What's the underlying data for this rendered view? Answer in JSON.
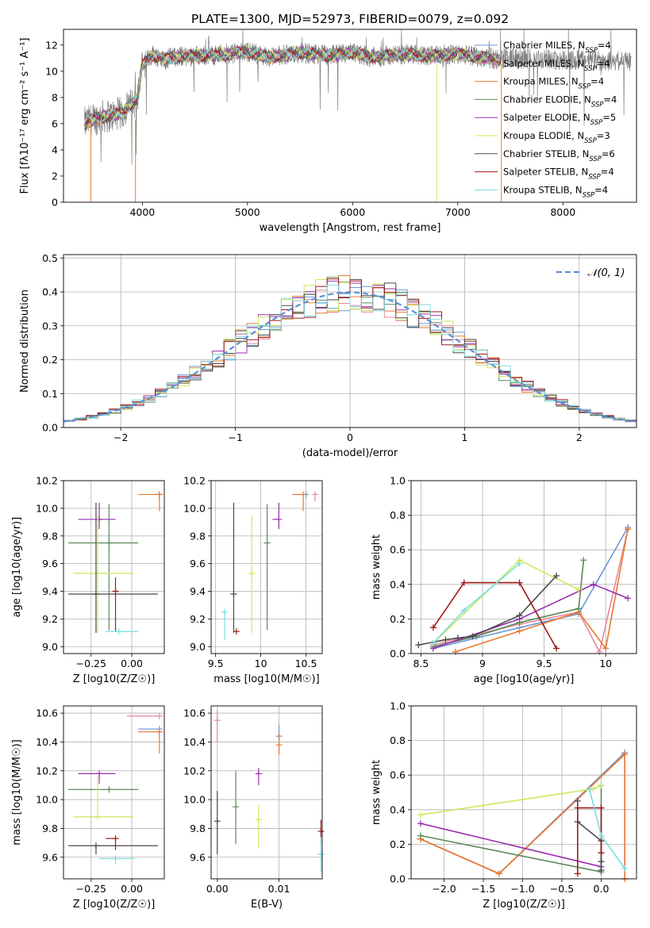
{
  "chart_data": [
    {
      "id": "spectrum",
      "type": "line",
      "title": "PLATE=1300, MJD=52973, FIBERID=0079, z=0.092",
      "xlabel": "wavelength [Angstrom, rest frame]",
      "ylabel": "Flux [fλ10⁻¹⁷ erg cm⁻² s⁻¹ A⁻¹]",
      "xlim": [
        3250,
        8700
      ],
      "ylim": [
        0,
        13.2
      ],
      "xticks": [
        4000,
        5000,
        6000,
        7000,
        8000
      ],
      "yticks": [
        0,
        2,
        4,
        6,
        8,
        10,
        12
      ],
      "grid": false,
      "legend_position": "right",
      "continuum": {
        "x": [
          3450,
          3500,
          3600,
          3700,
          3800,
          3900,
          3950,
          4000,
          4100,
          4200,
          4300,
          4500,
          4800,
          5000,
          5200,
          5500,
          5800,
          6000,
          6200,
          6500,
          6800,
          7000,
          7200,
          7400
        ],
        "y": [
          6.0,
          6.2,
          6.5,
          6.6,
          6.8,
          7.5,
          7.8,
          10.5,
          11.3,
          10.9,
          11.1,
          11.2,
          11.3,
          11.5,
          11.1,
          11.4,
          11.2,
          11.4,
          11.1,
          11.3,
          11.2,
          11.3,
          11.1,
          10.9
        ]
      },
      "series": [
        {
          "name": "Chabrier MILES, N_SSP=4",
          "color": "#6c96d6"
        },
        {
          "name": "Salpeter MILES, N_SSP=4",
          "color": "#e8889c"
        },
        {
          "name": "Kroupa MILES, N_SSP=4",
          "color": "#e67a30"
        },
        {
          "name": "Chabrier ELODIE, N_SSP=4",
          "color": "#5a8a5a"
        },
        {
          "name": "Salpeter ELODIE, N_SSP=5",
          "color": "#9c30b0"
        },
        {
          "name": "Kroupa ELODIE, N_SSP=3",
          "color": "#cde95c"
        },
        {
          "name": "Chabrier STELIB, N_SSP=6",
          "color": "#4a4a4a"
        },
        {
          "name": "Salpeter STELIB, N_SSP=4",
          "color": "#a01818"
        },
        {
          "name": "Kroupa STELIB, N_SSP=4",
          "color": "#7adce0"
        }
      ]
    },
    {
      "id": "residuals",
      "type": "histogram",
      "xlabel": "(data-model)/error",
      "ylabel": "Normed distribution",
      "xlim": [
        -2.5,
        2.5
      ],
      "ylim": [
        0,
        0.51
      ],
      "xticks": [
        -2,
        -1,
        0,
        1,
        2
      ],
      "yticks": [
        0.0,
        0.1,
        0.2,
        0.3,
        0.4,
        0.5
      ],
      "grid": true,
      "legend_position": "upper right",
      "gaussian_label": "𝒩(0, 1)",
      "gaussian_color": "#5a90d6"
    },
    {
      "id": "age_vs_Z",
      "type": "scatter",
      "xlabel": "Z [log10(Z/Z☉)]",
      "ylabel": "age  [log10(age/yr)]",
      "xlim": [
        -0.42,
        0.2
      ],
      "ylim": [
        8.95,
        10.2
      ],
      "xticks": [
        -0.25,
        0.0
      ],
      "xtick_labels": [
        "−0.25",
        "0.00"
      ],
      "yticks": [
        9.0,
        9.2,
        9.4,
        9.6,
        9.8,
        10.0,
        10.2
      ],
      "grid": true,
      "points": [
        {
          "series": "Chabrier MILES",
          "x": 0.17,
          "y": 10.1,
          "xerr": [
            0.0,
            0.0
          ],
          "yerr": [
            0.0,
            0.0
          ]
        },
        {
          "series": "Salpeter MILES",
          "x": 0.17,
          "y": 10.1,
          "xerr": [
            0.05,
            0.0
          ],
          "yerr": [
            0.05,
            0.0
          ]
        },
        {
          "series": "Kroupa MILES",
          "x": 0.17,
          "y": 10.1,
          "xerr": [
            0.13,
            0.0
          ],
          "yerr": [
            0.12,
            0.0
          ]
        },
        {
          "series": "Chabrier ELODIE",
          "x": -0.14,
          "y": 9.75,
          "xerr": [
            0.25,
            0.18
          ],
          "yerr": [
            0.63,
            0.28
          ]
        },
        {
          "series": "Salpeter ELODIE",
          "x": -0.2,
          "y": 9.92,
          "xerr": [
            0.13,
            0.1
          ],
          "yerr": [
            0.07,
            0.12
          ]
        },
        {
          "series": "Kroupa ELODIE",
          "x": -0.21,
          "y": 9.53,
          "xerr": [
            0.15,
            0.22
          ],
          "yerr": [
            0.43,
            0.42
          ]
        },
        {
          "series": "Chabrier STELIB",
          "x": -0.22,
          "y": 9.38,
          "xerr": [
            0.17,
            0.38
          ],
          "yerr": [
            0.28,
            0.66
          ]
        },
        {
          "series": "Salpeter STELIB",
          "x": -0.1,
          "y": 9.4,
          "xerr": [
            0.01,
            0.01
          ],
          "yerr": [
            0.29,
            0.1
          ]
        },
        {
          "series": "Kroupa STELIB",
          "x": -0.08,
          "y": 9.11,
          "xerr": [
            0.08,
            0.12
          ],
          "yerr": [
            0.0,
            0.0
          ]
        }
      ]
    },
    {
      "id": "age_vs_mass",
      "type": "scatter",
      "xlabel": "mass [log10(M/M☉)]",
      "ylabel": "",
      "xlim": [
        9.45,
        10.68
      ],
      "ylim": [
        8.95,
        10.2
      ],
      "xticks": [
        9.5,
        10.0,
        10.5
      ],
      "yticks": [
        9.0,
        9.2,
        9.4,
        9.6,
        9.8,
        10.0,
        10.2
      ],
      "grid": true,
      "points": [
        {
          "series": "Chabrier MILES",
          "x": 10.5,
          "y": 10.1,
          "xerr": [
            0.0,
            0.0
          ],
          "yerr": [
            0.0,
            0.0
          ]
        },
        {
          "series": "Salpeter MILES",
          "x": 10.6,
          "y": 10.1,
          "xerr": [
            0.0,
            0.03
          ],
          "yerr": [
            0.05,
            0.0
          ]
        },
        {
          "series": "Kroupa MILES",
          "x": 10.47,
          "y": 10.1,
          "xerr": [
            0.12,
            0.0
          ],
          "yerr": [
            0.12,
            0.0
          ]
        },
        {
          "series": "Chabrier ELODIE",
          "x": 10.07,
          "y": 9.75,
          "xerr": [
            0.0,
            0.0
          ],
          "yerr": [
            0.63,
            0.28
          ]
        },
        {
          "series": "Salpeter ELODIE",
          "x": 10.2,
          "y": 9.92,
          "xerr": [
            0.07,
            0.0
          ],
          "yerr": [
            0.07,
            0.12
          ]
        },
        {
          "series": "Kroupa ELODIE",
          "x": 9.9,
          "y": 9.53,
          "xerr": [
            0.0,
            0.0
          ],
          "yerr": [
            0.43,
            0.42
          ]
        },
        {
          "series": "Chabrier STELIB",
          "x": 9.7,
          "y": 9.38,
          "xerr": [
            0.0,
            0.0
          ],
          "yerr": [
            0.28,
            0.66
          ]
        },
        {
          "series": "Salpeter STELIB",
          "x": 9.73,
          "y": 9.11,
          "xerr": [
            0.01,
            0.01
          ],
          "yerr": [
            0.0,
            0.0
          ]
        },
        {
          "series": "Kroupa STELIB",
          "x": 9.6,
          "y": 9.25,
          "xerr": [
            0.0,
            0.0
          ],
          "yerr": [
            0.2,
            0.0
          ]
        }
      ]
    },
    {
      "id": "weight_vs_age",
      "type": "line",
      "xlabel": "age  [log10(age/yr)]",
      "ylabel": "mass weight",
      "xlim": [
        8.42,
        10.25
      ],
      "ylim": [
        0,
        1.0
      ],
      "xticks": [
        8.5,
        9.0,
        9.5,
        10.0
      ],
      "yticks": [
        0.0,
        0.2,
        0.4,
        0.6,
        0.8,
        1.0
      ],
      "grid": true,
      "series": [
        {
          "name": "Chabrier MILES",
          "x": [
            8.6,
            9.3,
            9.78,
            10.18
          ],
          "y": [
            0.03,
            0.15,
            0.23,
            0.73
          ]
        },
        {
          "name": "Salpeter MILES",
          "x": [
            8.6,
            9.3,
            9.78,
            9.95,
            10.18
          ],
          "y": [
            0.05,
            0.17,
            0.24,
            0.01,
            0.72
          ]
        },
        {
          "name": "Kroupa MILES",
          "x": [
            8.78,
            9.3,
            9.78,
            10.0,
            10.18
          ],
          "y": [
            0.01,
            0.13,
            0.24,
            0.03,
            0.72
          ]
        },
        {
          "name": "Chabrier ELODIE",
          "x": [
            8.6,
            8.95,
            9.3,
            9.78,
            9.82
          ],
          "y": [
            0.04,
            0.1,
            0.18,
            0.26,
            0.54
          ]
        },
        {
          "name": "Salpeter ELODIE",
          "x": [
            8.6,
            9.3,
            9.9,
            10.18
          ],
          "y": [
            0.03,
            0.2,
            0.4,
            0.32
          ]
        },
        {
          "name": "Kroupa ELODIE",
          "x": [
            8.6,
            9.3,
            9.78
          ],
          "y": [
            0.06,
            0.54,
            0.37
          ]
        },
        {
          "name": "Chabrier STELIB",
          "x": [
            8.48,
            8.7,
            8.8,
            8.92,
            9.3,
            9.6
          ],
          "y": [
            0.05,
            0.08,
            0.09,
            0.1,
            0.22,
            0.45
          ]
        },
        {
          "name": "Salpeter STELIB",
          "x": [
            8.6,
            8.85,
            9.3,
            9.6
          ],
          "y": [
            0.15,
            0.41,
            0.41,
            0.03
          ]
        },
        {
          "name": "Kroupa STELIB",
          "x": [
            8.6,
            8.85,
            9.3
          ],
          "y": [
            0.06,
            0.25,
            0.52
          ]
        }
      ]
    },
    {
      "id": "mass_vs_Z",
      "type": "scatter",
      "xlabel": "Z [log10(Z/Z☉)]",
      "ylabel": "mass [log10(M/M☉)]",
      "xlim": [
        -0.42,
        0.2
      ],
      "ylim": [
        9.45,
        10.65
      ],
      "xticks": [
        -0.25,
        0.0
      ],
      "xtick_labels": [
        "−0.25",
        "0.00"
      ],
      "yticks": [
        9.6,
        9.8,
        10.0,
        10.2,
        10.4,
        10.6
      ],
      "grid": true,
      "points": [
        {
          "series": "Chabrier MILES",
          "x": 0.17,
          "y": 10.49,
          "xerr": [
            0.13,
            0.0
          ],
          "yerr": [
            0.0,
            0.0
          ]
        },
        {
          "series": "Salpeter MILES",
          "x": 0.17,
          "y": 10.58,
          "xerr": [
            0.2,
            0.0
          ],
          "yerr": [
            0.0,
            0.0
          ]
        },
        {
          "series": "Kroupa MILES",
          "x": 0.17,
          "y": 10.47,
          "xerr": [
            0.13,
            0.0
          ],
          "yerr": [
            0.15,
            0.0
          ]
        },
        {
          "series": "Chabrier ELODIE",
          "x": -0.14,
          "y": 10.07,
          "xerr": [
            0.25,
            0.18
          ],
          "yerr": [
            0.0,
            0.0
          ]
        },
        {
          "series": "Salpeter ELODIE",
          "x": -0.2,
          "y": 10.18,
          "xerr": [
            0.13,
            0.1
          ],
          "yerr": [
            0.07,
            0.0
          ]
        },
        {
          "series": "Kroupa ELODIE",
          "x": -0.21,
          "y": 9.88,
          "xerr": [
            0.15,
            0.22
          ],
          "yerr": [
            0.0,
            0.28
          ]
        },
        {
          "series": "Chabrier STELIB",
          "x": -0.22,
          "y": 9.68,
          "xerr": [
            0.17,
            0.38
          ],
          "yerr": [
            0.06,
            0.0
          ]
        },
        {
          "series": "Salpeter STELIB",
          "x": -0.1,
          "y": 9.73,
          "xerr": [
            0.06,
            0.0
          ],
          "yerr": [
            0.08,
            0.0
          ]
        },
        {
          "series": "Kroupa STELIB",
          "x": -0.1,
          "y": 9.59,
          "xerr": [
            0.1,
            0.12
          ],
          "yerr": [
            0.04,
            0.0
          ]
        }
      ]
    },
    {
      "id": "mass_vs_EBV",
      "type": "scatter",
      "xlabel": "E(B-V)",
      "ylabel": "",
      "xlim": [
        -0.001,
        0.017
      ],
      "ylim": [
        9.45,
        10.65
      ],
      "xticks": [
        0.0,
        0.01
      ],
      "xtick_labels": [
        "0.00",
        "0.01"
      ],
      "yticks": [
        9.6,
        9.8,
        10.0,
        10.2,
        10.4,
        10.6
      ],
      "grid": true,
      "points": [
        {
          "series": "Salpeter MILES",
          "x": 0.0,
          "y": 10.55,
          "yerr": [
            0.15,
            0.07
          ]
        },
        {
          "series": "Chabrier MILES",
          "x": 0.01,
          "y": 10.44,
          "yerr": [
            0.12,
            0.08
          ]
        },
        {
          "series": "Kroupa MILES",
          "x": 0.01,
          "y": 10.38,
          "yerr": [
            0.07,
            0.08
          ]
        },
        {
          "series": "Chabrier ELODIE",
          "x": 0.003,
          "y": 9.95,
          "yerr": [
            0.26,
            0.25
          ]
        },
        {
          "series": "Salpeter ELODIE",
          "x": 0.0067,
          "y": 10.18,
          "yerr": [
            0.08,
            0.04
          ]
        },
        {
          "series": "Kroupa ELODIE",
          "x": 0.0067,
          "y": 9.86,
          "yerr": [
            0.2,
            0.1
          ]
        },
        {
          "series": "Chabrier STELIB",
          "x": 0.0,
          "y": 9.85,
          "yerr": [
            0.23,
            0.21
          ]
        },
        {
          "series": "Salpeter STELIB",
          "x": 0.0168,
          "y": 9.78,
          "yerr": [
            0.08,
            0.08
          ]
        },
        {
          "series": "Kroupa STELIB",
          "x": 0.0168,
          "y": 9.62,
          "yerr": [
            0.12,
            0.12
          ]
        }
      ]
    },
    {
      "id": "weight_vs_Z",
      "type": "line",
      "xlabel": "Z [log10(Z/Z☉)]",
      "ylabel": "mass weight",
      "xlim": [
        -2.42,
        0.45
      ],
      "ylim": [
        0,
        1.0
      ],
      "xticks": [
        -2.0,
        -1.5,
        -1.0,
        -0.5,
        0.0
      ],
      "xtick_labels": [
        "−2.0",
        "−1.5",
        "−1.0",
        "−0.5",
        "0.0"
      ],
      "yticks": [
        0.0,
        0.2,
        0.4,
        0.6,
        0.8,
        1.0
      ],
      "grid": true,
      "series": [
        {
          "name": "Chabrier MILES",
          "x": [
            -2.3,
            -1.3,
            0.3
          ],
          "y": [
            0.23,
            0.03,
            0.73
          ]
        },
        {
          "name": "Salpeter MILES",
          "x": [
            -2.3,
            -1.3,
            0.3,
            0.3
          ],
          "y": [
            0.23,
            0.03,
            0.72,
            0.0
          ]
        },
        {
          "name": "Kroupa MILES",
          "x": [
            -2.3,
            -1.3,
            0.3,
            0.3
          ],
          "y": [
            0.23,
            0.03,
            0.72,
            0.0
          ]
        },
        {
          "name": "Chabrier ELODIE",
          "x": [
            -2.3,
            0.0,
            0.0
          ],
          "y": [
            0.25,
            0.04,
            0.54
          ]
        },
        {
          "name": "Salpeter ELODIE",
          "x": [
            -2.3,
            0.0
          ],
          "y": [
            0.32,
            0.07
          ]
        },
        {
          "name": "Kroupa ELODIE",
          "x": [
            -2.3,
            -0.1,
            0.0
          ],
          "y": [
            0.37,
            0.52,
            0.54
          ]
        },
        {
          "name": "Chabrier STELIB",
          "x": [
            -0.3,
            -0.3,
            0.0,
            0.0,
            0.0
          ],
          "y": [
            0.45,
            0.33,
            0.22,
            0.1,
            0.05
          ]
        },
        {
          "name": "Salpeter STELIB",
          "x": [
            -0.3,
            -0.3,
            0.0,
            0.0
          ],
          "y": [
            0.03,
            0.41,
            0.41,
            0.15
          ]
        },
        {
          "name": "Kroupa STELIB",
          "x": [
            -0.15,
            0.0,
            0.3
          ],
          "y": [
            0.52,
            0.25,
            0.06
          ]
        }
      ]
    }
  ]
}
